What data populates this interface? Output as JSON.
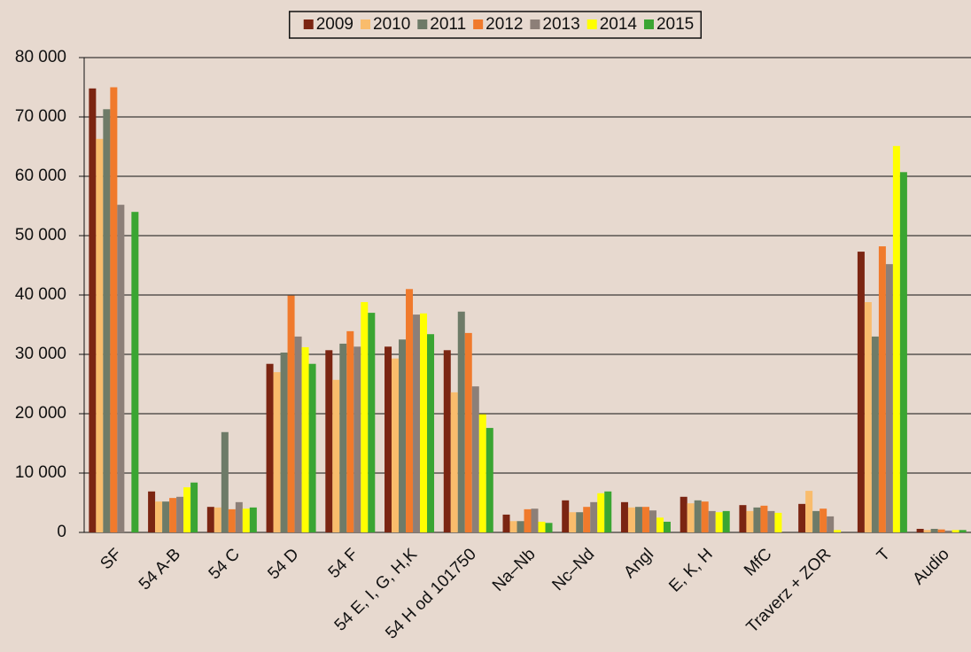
{
  "chart_data": {
    "type": "bar",
    "categories": [
      "SF",
      "54 A-B",
      "54 C",
      "54 D",
      "54 F",
      "54 E, I, G, H,K",
      "54 H od 101750",
      "Na–Nb",
      "Nc–Nd",
      "Angl",
      "E, K, H",
      "MfC",
      "Traverz + ZOR",
      "T",
      "Audio"
    ],
    "series": [
      {
        "name": "2009",
        "color": "#7b2512",
        "values": [
          74800,
          6900,
          4300,
          28400,
          30700,
          31300,
          30700,
          3000,
          5400,
          5100,
          6000,
          4600,
          4800,
          47300,
          600
        ]
      },
      {
        "name": "2010",
        "color": "#f9bc6c",
        "values": [
          66300,
          5200,
          4200,
          27000,
          25700,
          29300,
          23600,
          1900,
          3400,
          4200,
          4900,
          3600,
          7000,
          38800,
          400
        ]
      },
      {
        "name": "2011",
        "color": "#6e7b68",
        "values": [
          71300,
          5200,
          16900,
          30300,
          31800,
          32500,
          37200,
          1900,
          3400,
          4300,
          5400,
          4200,
          3600,
          33000,
          600
        ]
      },
      {
        "name": "2012",
        "color": "#f07a2c",
        "values": [
          75000,
          5800,
          3900,
          39900,
          33900,
          41000,
          33600,
          3900,
          4300,
          4300,
          5200,
          4500,
          4000,
          48200,
          500
        ]
      },
      {
        "name": "2013",
        "color": "#8c7f78",
        "values": [
          55200,
          6000,
          5100,
          33000,
          31300,
          36700,
          24600,
          4000,
          5100,
          3700,
          3600,
          3600,
          2700,
          45200,
          300
        ]
      },
      {
        "name": "2014",
        "color": "#ffff00",
        "values": [
          null,
          7600,
          4000,
          31200,
          38800,
          36900,
          19900,
          1800,
          6600,
          2500,
          3400,
          3300,
          400,
          65100,
          400
        ]
      },
      {
        "name": "2015",
        "color": "#3aa532",
        "values": [
          54000,
          8400,
          4200,
          28400,
          37000,
          33400,
          17600,
          1600,
          6900,
          1800,
          3600,
          null,
          null,
          60700,
          400
        ]
      }
    ],
    "ylim": [
      0,
      80000
    ],
    "yticks": [
      0,
      {
        "value": 10000,
        "label": "10 000"
      },
      {
        "value": 20000,
        "label": "20 000"
      },
      {
        "value": 30000,
        "label": "30 000"
      },
      {
        "value": 40000,
        "label": "40 000"
      },
      {
        "value": 50000,
        "label": "50 000"
      },
      {
        "value": 60000,
        "label": "60 000"
      },
      {
        "value": 70000,
        "label": "70 000"
      },
      {
        "value": 80000,
        "label": "80 000"
      }
    ],
    "grid": true,
    "legend": "top"
  }
}
